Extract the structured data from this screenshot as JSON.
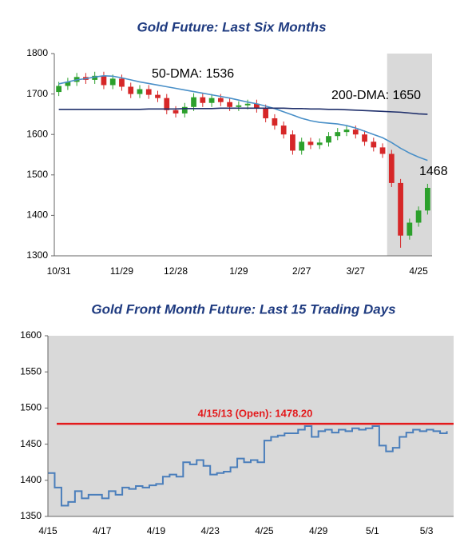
{
  "chart_data": [
    {
      "type": "candlestick",
      "title": "Gold Future: Last Six Months",
      "categories": [
        "10/31",
        null,
        null,
        null,
        null,
        null,
        null,
        "11/29",
        null,
        null,
        null,
        null,
        null,
        "12/28",
        null,
        null,
        null,
        null,
        null,
        null,
        "1/29",
        null,
        null,
        null,
        null,
        null,
        null,
        "2/27",
        null,
        null,
        null,
        null,
        null,
        "3/27",
        null,
        null,
        null,
        null,
        null,
        null,
        "4/25",
        null
      ],
      "open": [
        1705,
        1720,
        1730,
        1742,
        1735,
        1745,
        1722,
        1738,
        1718,
        1700,
        1712,
        1698,
        1690,
        1660,
        1652,
        1668,
        1692,
        1678,
        1690,
        1680,
        1668,
        1672,
        1676,
        1664,
        1640,
        1622,
        1600,
        1560,
        1582,
        1574,
        1580,
        1596,
        1606,
        1612,
        1600,
        1582,
        1568,
        1552,
        1480,
        1350,
        1382,
        1412
      ],
      "high": [
        1730,
        1740,
        1752,
        1752,
        1755,
        1755,
        1748,
        1748,
        1728,
        1722,
        1722,
        1708,
        1700,
        1670,
        1678,
        1702,
        1702,
        1700,
        1700,
        1690,
        1682,
        1686,
        1686,
        1674,
        1650,
        1632,
        1610,
        1592,
        1592,
        1590,
        1606,
        1616,
        1622,
        1622,
        1610,
        1592,
        1578,
        1562,
        1490,
        1392,
        1422,
        1478
      ],
      "low": [
        1695,
        1710,
        1720,
        1725,
        1725,
        1712,
        1712,
        1708,
        1690,
        1690,
        1688,
        1680,
        1650,
        1642,
        1642,
        1658,
        1668,
        1668,
        1670,
        1658,
        1658,
        1662,
        1654,
        1630,
        1612,
        1590,
        1550,
        1550,
        1564,
        1564,
        1570,
        1586,
        1596,
        1590,
        1572,
        1558,
        1542,
        1470,
        1320,
        1340,
        1372,
        1402
      ],
      "close": [
        1720,
        1730,
        1742,
        1735,
        1745,
        1722,
        1738,
        1718,
        1700,
        1712,
        1698,
        1690,
        1660,
        1652,
        1668,
        1692,
        1678,
        1690,
        1680,
        1668,
        1672,
        1676,
        1664,
        1640,
        1622,
        1600,
        1560,
        1582,
        1574,
        1580,
        1596,
        1606,
        1612,
        1600,
        1582,
        1568,
        1552,
        1480,
        1350,
        1382,
        1412,
        1468
      ],
      "up_color": "#2ca02c",
      "down_color": "#d62728",
      "overlays": [
        {
          "color": "#4a90c8",
          "values": [
            1725,
            1730,
            1735,
            1738,
            1742,
            1745,
            1744,
            1740,
            1735,
            1730,
            1726,
            1722,
            1718,
            1714,
            1710,
            1706,
            1702,
            1698,
            1694,
            1690,
            1685,
            1680,
            1676,
            1670,
            1664,
            1656,
            1648,
            1640,
            1634,
            1630,
            1628,
            1626,
            1622,
            1616,
            1608,
            1600,
            1592,
            1580,
            1566,
            1554,
            1544,
            1536
          ]
        },
        {
          "color": "#1f2f6b",
          "values": [
            1662,
            1662,
            1662,
            1662,
            1662,
            1662,
            1662,
            1662,
            1662,
            1662,
            1663,
            1663,
            1663,
            1663,
            1664,
            1664,
            1664,
            1664,
            1665,
            1665,
            1665,
            1665,
            1665,
            1665,
            1665,
            1665,
            1664,
            1664,
            1663,
            1663,
            1662,
            1662,
            1661,
            1660,
            1659,
            1658,
            1657,
            1656,
            1655,
            1653,
            1651,
            1650
          ]
        }
      ],
      "annotations": [
        "50-DMA: 1536",
        "200-DMA: 1650",
        "1468"
      ],
      "highlight_start_index": 37,
      "highlight_color": "#d9d9d9",
      "ylim": [
        1300,
        1800
      ],
      "yticks": [
        1300,
        1400,
        1500,
        1600,
        1700,
        1800
      ]
    },
    {
      "type": "line",
      "title": "Gold Front Month Future: Last 15 Trading Days",
      "categories": [
        "4/15",
        null,
        null,
        null,
        null,
        null,
        null,
        null,
        "4/17",
        null,
        null,
        null,
        null,
        null,
        null,
        null,
        "4/19",
        null,
        null,
        null,
        null,
        null,
        null,
        null,
        "4/23",
        null,
        null,
        null,
        null,
        null,
        null,
        null,
        "4/25",
        null,
        null,
        null,
        null,
        null,
        null,
        null,
        "4/29",
        null,
        null,
        null,
        null,
        null,
        null,
        null,
        "5/1",
        null,
        null,
        null,
        null,
        null,
        null,
        null,
        "5/3",
        null,
        null,
        null
      ],
      "values": [
        1410,
        1390,
        1365,
        1370,
        1385,
        1375,
        1380,
        1380,
        1375,
        1385,
        1380,
        1390,
        1388,
        1392,
        1390,
        1393,
        1395,
        1405,
        1408,
        1405,
        1425,
        1422,
        1428,
        1420,
        1408,
        1410,
        1412,
        1418,
        1430,
        1425,
        1428,
        1425,
        1455,
        1460,
        1462,
        1465,
        1465,
        1470,
        1475,
        1460,
        1468,
        1470,
        1466,
        1470,
        1468,
        1472,
        1470,
        1472,
        1475,
        1448,
        1440,
        1445,
        1460,
        1466,
        1470,
        1468,
        1470,
        1468,
        1465,
        1468
      ],
      "color": "#4a7ebb",
      "background": "#d9d9d9",
      "reference_line": {
        "value": 1478.2,
        "label": "4/15/13 (Open): 1478.20",
        "color": "#e31a1c"
      },
      "ylim": [
        1350,
        1600
      ],
      "yticks": [
        1350,
        1400,
        1450,
        1500,
        1550,
        1600
      ]
    }
  ]
}
